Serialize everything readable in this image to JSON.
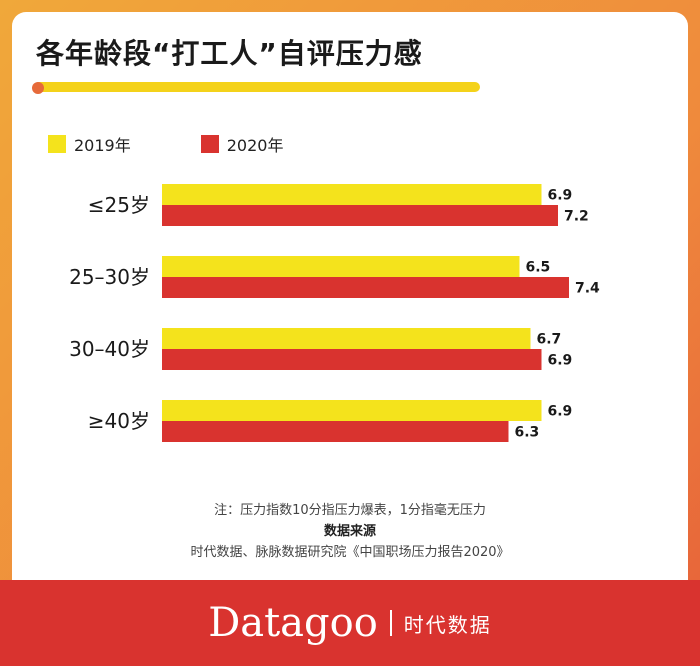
{
  "title": "各年龄段“打工人”自评压力感",
  "colors": {
    "accent_yellow": "#f4e31c",
    "accent_red": "#d9332f",
    "underline": "#f4d21a"
  },
  "legend": [
    {
      "label": "2019年",
      "color": "#f4e31c"
    },
    {
      "label": "2020年",
      "color": "#d9332f"
    }
  ],
  "chart_data": {
    "type": "bar",
    "orientation": "horizontal",
    "categories": [
      "≤25岁",
      "25–30岁",
      "30–40岁",
      "≥40岁"
    ],
    "series": [
      {
        "name": "2019年",
        "values": [
          6.9,
          6.5,
          6.7,
          6.9
        ],
        "color": "#f4e31c"
      },
      {
        "name": "2020年",
        "values": [
          7.2,
          7.4,
          6.9,
          6.3
        ],
        "color": "#d9332f"
      }
    ],
    "title": "各年龄段“打工人”自评压力感",
    "xlabel": "",
    "ylabel": "",
    "grid": false,
    "legend_position": "top-left"
  },
  "notes": {
    "note": "注：压力指数10分指压力爆表，1分指毫无压力",
    "source_title": "数据来源",
    "source": "时代数据、脉脉数据研究院《中国职场压力报告2020》"
  },
  "footer": {
    "brand": "Datagoo",
    "brand_cn": "时代数据"
  }
}
